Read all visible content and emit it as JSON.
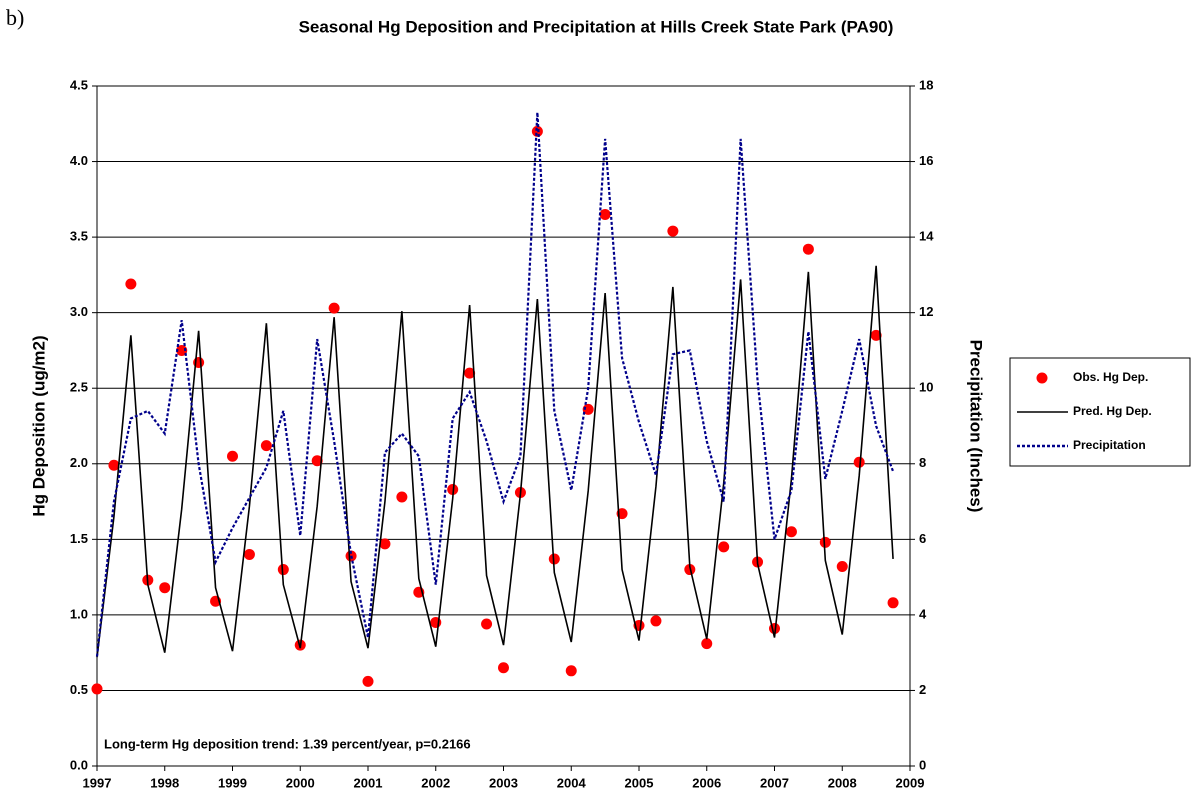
{
  "panel_label": "b)",
  "chart_data": {
    "type": "line",
    "title": "Seasonal Hg Deposition and Precipitation at Hills Creek State Park (PA90)",
    "ylabel": "Hg Deposition (ug/m2)",
    "y2label": "Precipitation (Inches)",
    "annotation": "Long-term Hg deposition trend:  1.39 percent/year,  p=0.2166",
    "x": [
      1997,
      1997.25,
      1997.5,
      1997.75,
      1998,
      1998.25,
      1998.5,
      1998.75,
      1999,
      1999.25,
      1999.5,
      1999.75,
      2000,
      2000.25,
      2000.5,
      2000.75,
      2001,
      2001.25,
      2001.5,
      2001.75,
      2002,
      2002.25,
      2002.5,
      2002.75,
      2003,
      2003.25,
      2003.5,
      2003.75,
      2004,
      2004.25,
      2004.5,
      2004.75,
      2005,
      2005.25,
      2005.5,
      2005.75,
      2006,
      2006.25,
      2006.5,
      2006.75,
      2007,
      2007.25,
      2007.5,
      2007.75,
      2008,
      2008.25,
      2008.5,
      2008.75
    ],
    "xlim": [
      1997,
      2009
    ],
    "xticks": [
      1997,
      1998,
      1999,
      2000,
      2001,
      2002,
      2003,
      2004,
      2005,
      2006,
      2007,
      2008,
      2009
    ],
    "ylim": [
      0,
      4.5
    ],
    "yticks": [
      {
        "value": 0,
        "label": "0.0"
      },
      0.5,
      {
        "value": 1,
        "label": "1.0"
      },
      1.5,
      {
        "value": 2,
        "label": "2.0"
      },
      2.5,
      {
        "value": 3,
        "label": "3.0"
      },
      3.5,
      {
        "value": 4,
        "label": "4.0"
      },
      4.5
    ],
    "y2lim": [
      0,
      18
    ],
    "y2ticks": [
      0,
      2,
      4,
      6,
      8,
      10,
      12,
      14,
      16,
      18
    ],
    "grid": true,
    "legend": "right",
    "series": [
      {
        "name": "Obs. Hg Dep.",
        "color": "#ff0000",
        "kind": "scatter",
        "values": [
          0.51,
          1.99,
          3.19,
          1.23,
          1.18,
          2.75,
          2.67,
          1.09,
          2.05,
          1.4,
          2.12,
          1.3,
          0.8,
          2.02,
          3.03,
          1.39,
          0.56,
          1.47,
          1.78,
          1.15,
          0.95,
          1.83,
          2.6,
          0.94,
          0.65,
          1.81,
          4.2,
          1.37,
          0.63,
          2.36,
          3.65,
          1.67,
          0.93,
          0.96,
          3.54,
          1.3,
          0.81,
          1.45,
          null,
          1.35,
          0.91,
          1.55,
          3.42,
          1.48,
          1.32,
          2.01,
          2.85,
          1.08
        ]
      },
      {
        "name": "Pred. Hg Dep.",
        "color": "#000000",
        "kind": "solid",
        "values": [
          0.72,
          1.65,
          2.85,
          1.2,
          0.75,
          1.7,
          2.88,
          1.18,
          0.76,
          1.72,
          2.93,
          1.2,
          0.78,
          1.72,
          2.97,
          1.22,
          0.78,
          1.75,
          3.01,
          1.24,
          0.79,
          1.77,
          3.05,
          1.26,
          0.8,
          1.8,
          3.09,
          1.28,
          0.82,
          1.82,
          3.13,
          1.3,
          0.83,
          1.85,
          3.17,
          1.32,
          0.84,
          1.87,
          3.22,
          1.34,
          0.85,
          1.9,
          3.27,
          1.36,
          0.87,
          1.92,
          3.31,
          1.37
        ]
      },
      {
        "name": "Precipitation",
        "color": "#00008b",
        "kind": "dotted",
        "axis": "y2",
        "values": [
          2.9,
          7.0,
          9.2,
          9.4,
          8.8,
          11.8,
          8.0,
          5.4,
          6.3,
          7.1,
          7.9,
          9.4,
          6.1,
          11.3,
          8.6,
          5.6,
          3.4,
          8.3,
          8.8,
          8.2,
          4.8,
          9.2,
          9.9,
          8.6,
          7.0,
          8.2,
          17.3,
          9.4,
          7.3,
          10.0,
          16.6,
          10.8,
          9.1,
          7.7,
          10.9,
          11.0,
          8.6,
          7.0,
          16.6,
          10.2,
          6.0,
          7.3,
          11.5,
          7.6,
          9.4,
          11.3,
          9.0,
          7.8
        ]
      }
    ]
  }
}
